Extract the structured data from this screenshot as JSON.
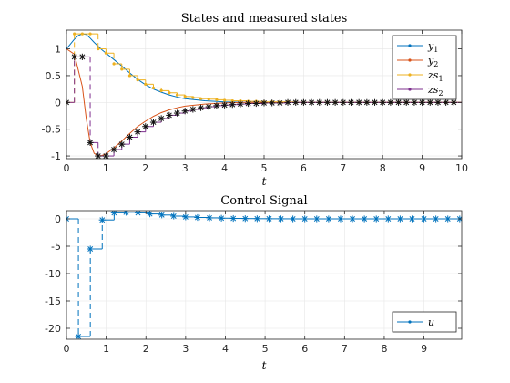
{
  "chart_data": [
    {
      "type": "line",
      "title": "States and measured states",
      "xlabel": "t",
      "ylabel": "",
      "xlim": [
        0,
        10
      ],
      "ylim": [
        -1.05,
        1.35
      ],
      "xticks": [
        0,
        1,
        2,
        3,
        4,
        5,
        6,
        7,
        8,
        9,
        10
      ],
      "yticks": [
        -1,
        -0.5,
        0,
        0.5,
        1
      ],
      "xtick_labels": [
        "0",
        "1",
        "2",
        "3",
        "4",
        "5",
        "6",
        "7",
        "8",
        "9",
        "10"
      ],
      "ytick_labels": [
        "-1",
        "-0.5",
        "0",
        "0.5",
        "1"
      ],
      "grid": true,
      "legend_position": "top-right",
      "series": [
        {
          "name": "y1",
          "legend": "y",
          "legend_sub": "1",
          "color": "#0072BD",
          "style": "line",
          "x": [
            0,
            0.1,
            0.2,
            0.3,
            0.4,
            0.5,
            0.6,
            0.7,
            0.8,
            0.9,
            1.0,
            1.2,
            1.4,
            1.6,
            1.8,
            2.0,
            2.2,
            2.4,
            2.6,
            2.8,
            3.0,
            3.5,
            4.0,
            4.5,
            5.0,
            6.0,
            7.0,
            8.0,
            9.0,
            10.0
          ],
          "y": [
            1.0,
            1.09,
            1.18,
            1.25,
            1.28,
            1.27,
            1.2,
            1.12,
            1.05,
            0.98,
            0.92,
            0.8,
            0.68,
            0.55,
            0.43,
            0.33,
            0.25,
            0.19,
            0.14,
            0.1,
            0.07,
            0.03,
            0.01,
            0.0,
            0.0,
            0.0,
            0.0,
            0.0,
            0.0,
            0.0
          ]
        },
        {
          "name": "y2",
          "legend": "y",
          "legend_sub": "2",
          "color": "#D95319",
          "style": "line",
          "x": [
            0,
            0.2,
            0.4,
            0.5,
            0.6,
            0.7,
            0.8,
            0.9,
            1.0,
            1.2,
            1.4,
            1.6,
            1.8,
            2.0,
            2.2,
            2.4,
            2.6,
            2.8,
            3.0,
            3.5,
            4.0,
            4.5,
            5.0,
            6.0,
            7.0,
            8.0,
            9.0,
            10.0
          ],
          "y": [
            1.0,
            0.9,
            0.3,
            -0.3,
            -0.75,
            -0.95,
            -1.0,
            -0.99,
            -0.96,
            -0.85,
            -0.72,
            -0.58,
            -0.45,
            -0.35,
            -0.26,
            -0.19,
            -0.14,
            -0.1,
            -0.07,
            -0.03,
            -0.01,
            0.0,
            0.0,
            0.0,
            0.0,
            0.0,
            0.0,
            0.0
          ]
        },
        {
          "name": "zs1",
          "legend": "zs",
          "legend_sub": "1",
          "color": "#EDB120",
          "style": "stairs",
          "marker": "point",
          "dt": 0.2,
          "values": [
            0,
            1.28,
            1.28,
            1.28,
            1.0,
            0.92,
            0.72,
            0.62,
            0.5,
            0.42,
            0.34,
            0.27,
            0.22,
            0.18,
            0.14,
            0.11,
            0.09,
            0.07,
            0.06,
            0.05,
            0.04,
            0.03,
            0.03,
            0.02,
            0.02,
            0.01,
            0.01,
            0.01,
            0.01,
            0,
            0,
            0,
            0,
            0,
            0,
            0,
            0,
            0,
            0,
            0,
            0,
            0,
            0,
            0,
            0,
            0,
            0,
            0,
            0,
            0
          ]
        },
        {
          "name": "zs2",
          "legend": "zs",
          "legend_sub": "2",
          "color": "#7E2F8E",
          "style": "stairs",
          "marker": "star",
          "marker_color": "#111111",
          "dt": 0.2,
          "values": [
            0,
            0.85,
            0.85,
            -0.75,
            -1.0,
            -1.0,
            -0.88,
            -0.78,
            -0.65,
            -0.55,
            -0.45,
            -0.37,
            -0.3,
            -0.24,
            -0.2,
            -0.16,
            -0.13,
            -0.1,
            -0.08,
            -0.06,
            -0.05,
            -0.04,
            -0.03,
            -0.02,
            -0.02,
            -0.01,
            -0.01,
            -0.01,
            0,
            0,
            0,
            0,
            0,
            0,
            0,
            0,
            0,
            0,
            0,
            0,
            0,
            0,
            0,
            0,
            0,
            0,
            0,
            0,
            0,
            0
          ]
        }
      ]
    },
    {
      "type": "stem",
      "title": "Control Signal",
      "xlabel": "t",
      "ylabel": "",
      "xlim": [
        0,
        9.95
      ],
      "ylim": [
        -22,
        1.5
      ],
      "xticks": [
        0,
        1,
        2,
        3,
        4,
        5,
        6,
        7,
        8,
        9
      ],
      "yticks": [
        -20,
        -15,
        -10,
        -5,
        0
      ],
      "xtick_labels": [
        "0",
        "1",
        "2",
        "3",
        "4",
        "5",
        "6",
        "7",
        "8",
        "9"
      ],
      "ytick_labels": [
        "-20",
        "-15",
        "-10",
        "-5",
        "0"
      ],
      "grid": true,
      "legend_position": "bottom-right",
      "series": [
        {
          "name": "u",
          "legend": "u",
          "legend_sub": "",
          "color": "#0072BD",
          "style": "stairs-dashed",
          "marker": "star",
          "dt": 0.3,
          "values": [
            0,
            -21.5,
            -5.5,
            -0.2,
            1.1,
            1.2,
            1.1,
            0.9,
            0.7,
            0.5,
            0.35,
            0.25,
            0.18,
            0.12,
            0.08,
            0.05,
            0.03,
            0.02,
            0.01,
            0,
            0,
            0,
            0,
            0,
            0,
            0,
            0,
            0,
            0,
            0,
            0,
            0,
            0,
            0
          ]
        }
      ]
    }
  ]
}
